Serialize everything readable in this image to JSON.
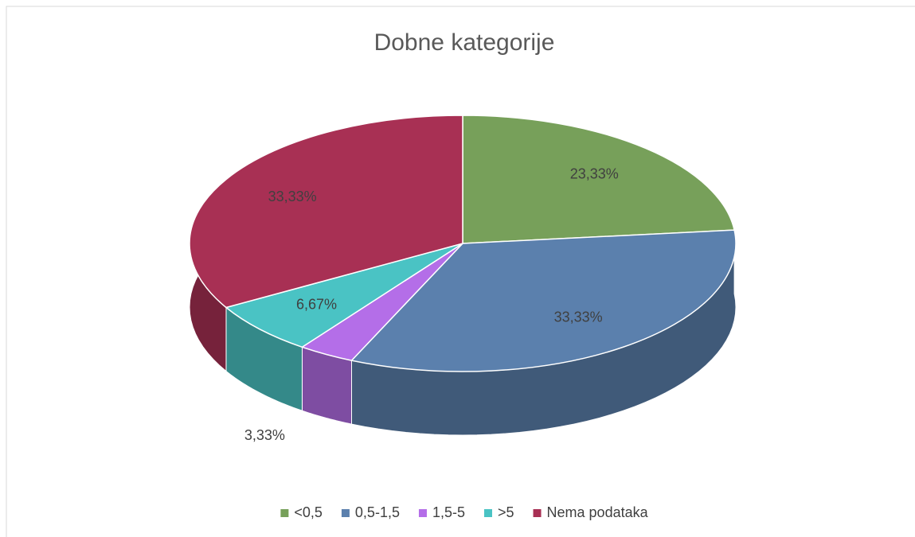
{
  "chart_data": {
    "type": "pie3d",
    "title": "Dobne kategorije",
    "categories": [
      "<0,5",
      "0,5-1,5",
      "1,5-5",
      ">5",
      "Nema podataka"
    ],
    "values": [
      23.33,
      33.33,
      3.33,
      6.67,
      33.33
    ],
    "value_labels": [
      "23,33%",
      "33,33%",
      "3,33%",
      "6,67%",
      "33,33%"
    ],
    "colors": [
      "#77a05a",
      "#5b80ad",
      "#b46ee8",
      "#4ac3c4",
      "#a83054"
    ],
    "legend": "bottom"
  }
}
